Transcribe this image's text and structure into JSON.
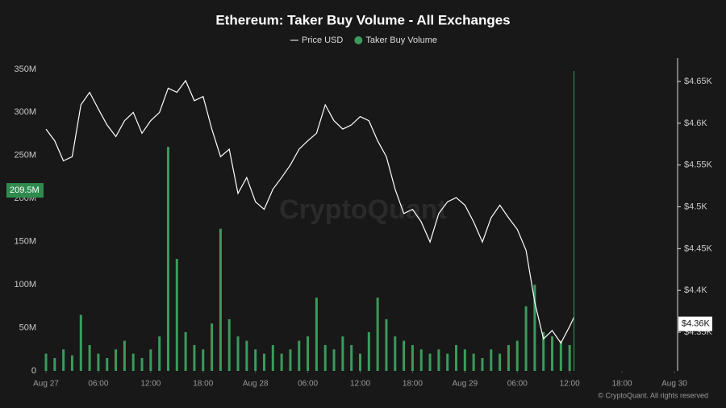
{
  "chart_data": {
    "type": "combo",
    "title": "Ethereum: Taker Buy Volume - All Exchanges",
    "watermark": "CryptoQuant",
    "footer": "© CryptoQuant. All rights reserved",
    "xlim": [
      0,
      72
    ],
    "xticks": [
      {
        "value": 0,
        "label": "Aug 27"
      },
      {
        "value": 6,
        "label": "06:00"
      },
      {
        "value": 12,
        "label": "12:00"
      },
      {
        "value": 18,
        "label": "18:00"
      },
      {
        "value": 24,
        "label": "Aug 28"
      },
      {
        "value": 30,
        "label": "06:00"
      },
      {
        "value": 36,
        "label": "12:00"
      },
      {
        "value": 42,
        "label": "18:00"
      },
      {
        "value": 48,
        "label": "Aug 29"
      },
      {
        "value": 54,
        "label": "06:00"
      },
      {
        "value": 60,
        "label": "12:00"
      },
      {
        "value": 66,
        "label": "18:00"
      },
      {
        "value": 72,
        "label": "Aug 30"
      }
    ],
    "ylim": [
      0,
      363000000
    ],
    "yticks": [
      {
        "value": 0,
        "label": "0"
      },
      {
        "value": 50000000,
        "label": "50M"
      },
      {
        "value": 100000000,
        "label": "100M"
      },
      {
        "value": 150000000,
        "label": "150M"
      },
      {
        "value": 200000000,
        "label": "200M"
      },
      {
        "value": 250000000,
        "label": "250M"
      },
      {
        "value": 300000000,
        "label": "300M"
      },
      {
        "value": 350000000,
        "label": "350M"
      }
    ],
    "y2lim": [
      4303.7,
      4678
    ],
    "y2ticks": [
      {
        "value": 4350,
        "label": "$4.35K"
      },
      {
        "value": 4400,
        "label": "$4.4K"
      },
      {
        "value": 4450,
        "label": "$4.45K"
      },
      {
        "value": 4500,
        "label": "$4.5K"
      },
      {
        "value": 4550,
        "label": "$4.55K"
      },
      {
        "value": 4600,
        "label": "$4.6K"
      },
      {
        "value": 4650,
        "label": "$4.65K"
      }
    ],
    "crosshair_x": 60.5,
    "markers": [
      {
        "value": 209500000,
        "label": "209.5M",
        "axis": "y"
      },
      {
        "value": 4360,
        "label": "$4.36K",
        "axis": "y2"
      }
    ],
    "series": [
      {
        "name": "Price USD",
        "type": "line",
        "axis": "y2",
        "color": "#ffffff",
        "x": [
          0,
          1,
          2,
          3,
          4,
          5,
          6,
          7,
          8,
          9,
          10,
          11,
          12,
          13,
          14,
          15,
          16,
          17,
          18,
          19,
          20,
          21,
          22,
          23,
          24,
          25,
          26,
          27,
          28,
          29,
          30,
          31,
          32,
          33,
          34,
          35,
          36,
          37,
          38,
          39,
          40,
          41,
          42,
          43,
          44,
          45,
          46,
          47,
          48,
          49,
          50,
          51,
          52,
          53,
          54,
          55,
          56,
          57,
          58,
          59,
          60,
          60.5
        ],
        "values": [
          4593,
          4579,
          4555,
          4560,
          4622,
          4637,
          4617,
          4598,
          4584,
          4603,
          4613,
          4588,
          4603,
          4613,
          4642,
          4637,
          4651,
          4627,
          4632,
          4593,
          4560,
          4569,
          4516,
          4535,
          4506,
          4497,
          4521,
          4535,
          4550,
          4569,
          4579,
          4588,
          4622,
          4603,
          4593,
          4598,
          4608,
          4603,
          4579,
          4560,
          4521,
          4492,
          4497,
          4482,
          4458,
          4492,
          4506,
          4511,
          4502,
          4482,
          4458,
          4487,
          4502,
          4487,
          4473,
          4448,
          4386,
          4342,
          4352,
          4337,
          4357,
          4368
        ]
      },
      {
        "name": "Taker Buy Volume",
        "type": "bar",
        "axis": "y",
        "color": "#3b9b5c",
        "x": [
          0,
          1,
          2,
          3,
          4,
          5,
          6,
          7,
          8,
          9,
          10,
          11,
          12,
          13,
          14,
          15,
          16,
          17,
          18,
          19,
          20,
          21,
          22,
          23,
          24,
          25,
          26,
          27,
          28,
          29,
          30,
          31,
          32,
          33,
          34,
          35,
          36,
          37,
          38,
          39,
          40,
          41,
          42,
          43,
          44,
          45,
          46,
          47,
          48,
          49,
          50,
          51,
          52,
          53,
          54,
          55,
          56,
          57,
          58,
          59,
          60
        ],
        "values": [
          20000000,
          15000000,
          25000000,
          18000000,
          65000000,
          30000000,
          20000000,
          15000000,
          25000000,
          35000000,
          20000000,
          15000000,
          25000000,
          40000000,
          260000000,
          130000000,
          45000000,
          30000000,
          25000000,
          55000000,
          165000000,
          60000000,
          40000000,
          35000000,
          25000000,
          20000000,
          30000000,
          20000000,
          25000000,
          35000000,
          40000000,
          85000000,
          30000000,
          25000000,
          40000000,
          30000000,
          20000000,
          45000000,
          85000000,
          60000000,
          40000000,
          35000000,
          30000000,
          25000000,
          20000000,
          25000000,
          20000000,
          30000000,
          25000000,
          20000000,
          15000000,
          25000000,
          20000000,
          30000000,
          35000000,
          75000000,
          100000000,
          45000000,
          40000000,
          35000000,
          30000000
        ]
      }
    ]
  }
}
